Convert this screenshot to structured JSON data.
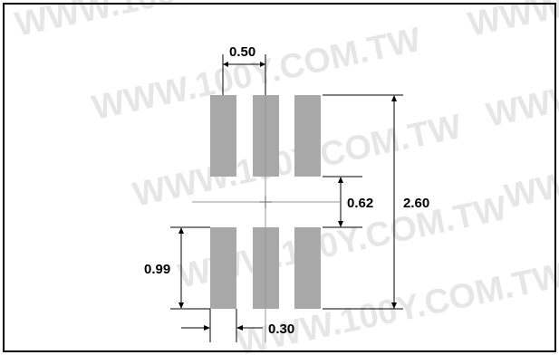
{
  "watermark": {
    "text": "WWW.100Y.COM.TW"
  },
  "colors": {
    "pad": "#a8a8a8",
    "frame": "#000000",
    "center_line": "#9a9a9a",
    "watermark": "#d3d3d3"
  },
  "dimensions": {
    "pad_pitch": "0.50",
    "row_gap": "0.62",
    "overall_height": "2.60",
    "pad_length": "0.99",
    "pad_width": "0.30"
  },
  "pad_layout": {
    "rows": 2,
    "columns": 3
  }
}
